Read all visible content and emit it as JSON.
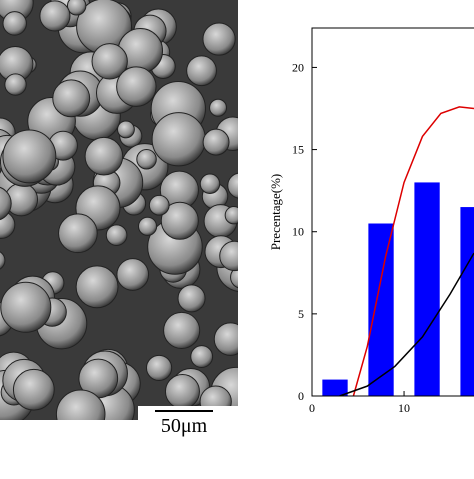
{
  "micrograph": {
    "scale_label": "50μm"
  },
  "chart_data": {
    "type": "bar",
    "y_label": "Precentage(%)",
    "x": [
      2.5,
      7.5,
      12.5,
      17.5
    ],
    "values": [
      1,
      10.5,
      13,
      11.5
    ],
    "color": "#0000ff",
    "xlim": [
      0,
      17.6
    ],
    "xticks": [
      0,
      10
    ],
    "ylim": [
      0,
      22.4
    ],
    "yticks": [
      0,
      5,
      10,
      15,
      20
    ],
    "curves": [
      {
        "color": "#dd0000",
        "x": [
          4.5,
          6,
          8,
          10,
          12,
          14,
          16,
          17.6
        ],
        "values": [
          0,
          3,
          8.5,
          13,
          15.8,
          17.2,
          17.6,
          17.5
        ]
      },
      {
        "color": "#000000",
        "x": [
          3,
          6,
          9,
          12,
          15,
          17.6
        ],
        "values": [
          0,
          0.6,
          1.8,
          3.6,
          6.2,
          8.7
        ]
      }
    ]
  }
}
